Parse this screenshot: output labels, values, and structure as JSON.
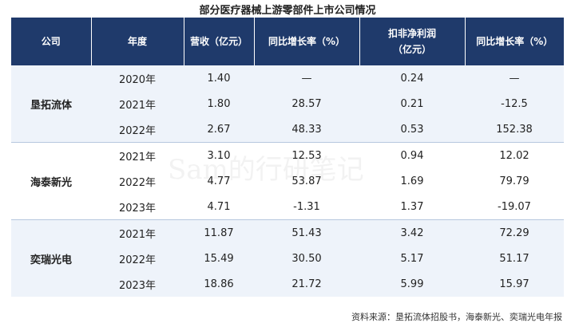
{
  "title": "部分医疗器械上游零部件上市公司情况",
  "table": {
    "header": [
      "公司",
      "年度",
      "营收（亿元）",
      "同比增长率（%）",
      [
        "扣非净利润",
        "（亿元）"
      ],
      "同比增长率（%）"
    ],
    "groups": [
      {
        "company": "垦拓流体",
        "rows": [
          [
            "2020年",
            "1.40",
            "—",
            "0.24",
            "—"
          ],
          [
            "2021年",
            "1.80",
            "28.57",
            "0.21",
            "-12.5"
          ],
          [
            "2022年",
            "2.67",
            "48.33",
            "0.53",
            "152.38"
          ]
        ]
      },
      {
        "company": "海泰新光",
        "rows": [
          [
            "2021年",
            "3.10",
            "12.53",
            "0.94",
            "12.02"
          ],
          [
            "2022年",
            "4.77",
            "53.87",
            "1.69",
            "79.79"
          ],
          [
            "2023年",
            "4.71",
            "-1.31",
            "1.37",
            "-19.07"
          ]
        ]
      },
      {
        "company": "奕瑞光电",
        "rows": [
          [
            "2021年",
            "11.87",
            "51.43",
            "3.42",
            "72.29"
          ],
          [
            "2022年",
            "15.49",
            "30.50",
            "5.17",
            "51.17"
          ],
          [
            "2023年",
            "18.86",
            "21.72",
            "5.99",
            "15.97"
          ]
        ]
      }
    ]
  },
  "watermark": "Sam的行研笔记",
  "source": "资料来源：垦拓流体招股书，海泰新光、奕瑞光电年报"
}
